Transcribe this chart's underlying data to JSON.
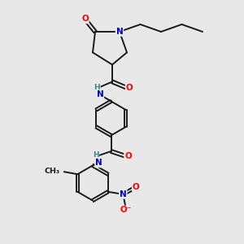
{
  "background_color": "#e8e8e8",
  "bond_color": "#1a1a1a",
  "atom_colors": {
    "O": "#ff0000",
    "N": "#0000cd",
    "H": "#3a8a8a",
    "C": "#1a1a1a"
  },
  "figsize": [
    3.0,
    3.0
  ],
  "dpi": 100
}
